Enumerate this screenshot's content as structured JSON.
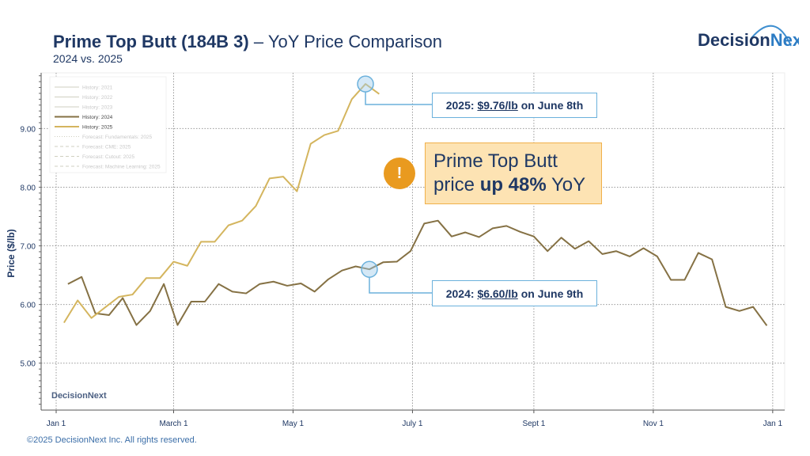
{
  "header": {
    "title_main": "Prime Top Butt (184B 3)",
    "title_rest": " – YoY Price Comparison",
    "subtitle": "2024 vs. 2025",
    "logo_text": "DecisionNext"
  },
  "footer": "©2025 DecisionNext Inc. All rights reserved.",
  "watermark_text": "DecisionNext",
  "annotations": {
    "peak_2025": {
      "prefix": "2025: ",
      "price": "$9.76/lb",
      "suffix": " on June 8th"
    },
    "point_2024": {
      "prefix": "2024: ",
      "price": "$6.60/lb",
      "suffix": " on June 9th"
    },
    "callout": {
      "line1": "Prime Top Butt",
      "line2_a": "price ",
      "line2_b": "up 48%",
      "line2_c": " YoY"
    },
    "alert_icon": "!"
  },
  "colors": {
    "series_2024": "#857144",
    "series_2025": "#d4b55e",
    "annotation_blue": "#6bb1dc",
    "callout_fill": "#fde3b3",
    "alert_orange": "#e99a1f",
    "title_navy": "#1f3864"
  },
  "chart_data": {
    "type": "line",
    "title": "Prime Top Butt (184B 3) – YoY Price Comparison",
    "subtitle": "2024 vs. 2025",
    "ylabel": "Price ($/lb)",
    "xlabel": "",
    "ylim": [
      4.2,
      9.95
    ],
    "yticks": [
      "5.00",
      "6.00",
      "7.00",
      "8.00",
      "9.00"
    ],
    "xticks": [
      "Jan 1",
      "March 1",
      "May 1",
      "July 1",
      "Sept 1",
      "Nov 1",
      "Jan 1"
    ],
    "grid": true,
    "legend_position": "top-left",
    "legend": [
      {
        "label": "History: 2021",
        "style": "solid",
        "faded": true
      },
      {
        "label": "History: 2022",
        "style": "solid",
        "faded": true
      },
      {
        "label": "History: 2023",
        "style": "solid",
        "faded": true
      },
      {
        "label": "History: 2024",
        "style": "solid",
        "faded": false
      },
      {
        "label": "History: 2025",
        "style": "solid",
        "faded": false
      },
      {
        "label": "Forecast: Fundamentals: 2025",
        "style": "dotted",
        "faded": true
      },
      {
        "label": "Forecast: CME: 2025",
        "style": "dashed",
        "faded": true
      },
      {
        "label": "Forecast: Cutout: 2025",
        "style": "dashed",
        "faded": true
      },
      {
        "label": "Forecast: Machine Learning: 2025",
        "style": "dashed",
        "faded": true
      }
    ],
    "series": [
      {
        "name": "History: 2024",
        "year": 2024,
        "x": [
          "2024-01-07",
          "2024-01-14",
          "2024-01-21",
          "2024-01-28",
          "2024-02-04",
          "2024-02-11",
          "2024-02-18",
          "2024-02-25",
          "2024-03-03",
          "2024-03-10",
          "2024-03-17",
          "2024-03-24",
          "2024-03-31",
          "2024-04-07",
          "2024-04-14",
          "2024-04-21",
          "2024-04-28",
          "2024-05-05",
          "2024-05-12",
          "2024-05-19",
          "2024-05-26",
          "2024-06-02",
          "2024-06-09",
          "2024-06-16",
          "2024-06-23",
          "2024-06-30",
          "2024-07-07",
          "2024-07-14",
          "2024-07-21",
          "2024-07-28",
          "2024-08-04",
          "2024-08-11",
          "2024-08-18",
          "2024-08-25",
          "2024-09-01",
          "2024-09-08",
          "2024-09-15",
          "2024-09-22",
          "2024-09-29",
          "2024-10-06",
          "2024-10-13",
          "2024-10-20",
          "2024-10-27",
          "2024-11-03",
          "2024-11-10",
          "2024-11-17",
          "2024-11-24",
          "2024-12-01",
          "2024-12-08",
          "2024-12-15",
          "2024-12-22",
          "2024-12-29"
        ],
        "y": [
          6.35,
          6.47,
          5.85,
          5.82,
          6.11,
          5.65,
          5.89,
          6.35,
          5.65,
          6.05,
          6.05,
          6.35,
          6.22,
          6.19,
          6.35,
          6.39,
          6.32,
          6.36,
          6.22,
          6.43,
          6.58,
          6.65,
          6.6,
          6.72,
          6.73,
          6.91,
          7.38,
          7.43,
          7.16,
          7.23,
          7.15,
          7.3,
          7.34,
          7.24,
          7.16,
          6.91,
          7.14,
          6.95,
          7.08,
          6.86,
          6.91,
          6.82,
          6.96,
          6.82,
          6.42,
          6.42,
          6.88,
          6.77,
          5.96,
          5.89,
          5.96,
          5.64
        ]
      },
      {
        "name": "History: 2025",
        "year": 2025,
        "x": [
          "2025-01-05",
          "2025-01-12",
          "2025-01-19",
          "2025-01-26",
          "2025-02-02",
          "2025-02-09",
          "2025-02-16",
          "2025-02-23",
          "2025-03-02",
          "2025-03-09",
          "2025-03-16",
          "2025-03-23",
          "2025-03-30",
          "2025-04-06",
          "2025-04-13",
          "2025-04-20",
          "2025-04-27",
          "2025-05-04",
          "2025-05-11",
          "2025-05-18",
          "2025-05-25",
          "2025-06-01",
          "2025-06-08",
          "2025-06-15"
        ],
        "y": [
          5.69,
          6.07,
          5.77,
          5.95,
          6.13,
          6.17,
          6.45,
          6.45,
          6.73,
          6.66,
          7.07,
          7.07,
          7.35,
          7.43,
          7.68,
          8.15,
          8.18,
          7.93,
          8.74,
          8.89,
          8.96,
          9.5,
          9.76,
          9.59
        ]
      }
    ]
  }
}
